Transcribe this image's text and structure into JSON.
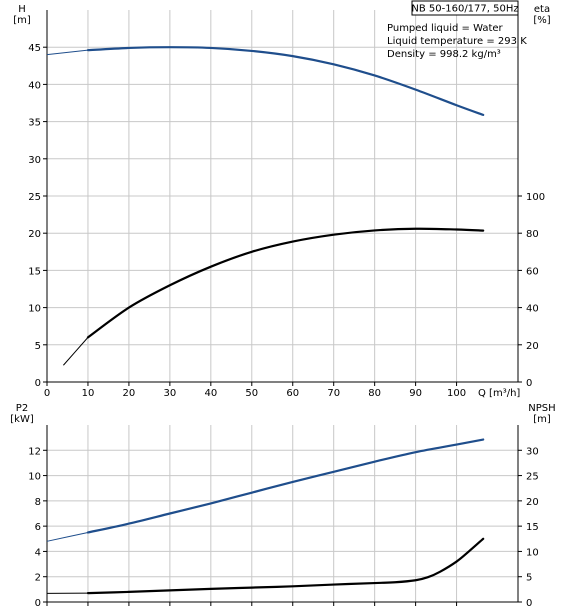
{
  "chart_data": [
    {
      "type": "line",
      "id": "top",
      "title_box": "NB 50-160/177, 50Hz",
      "annotations": [
        "Pumped liquid = Water",
        "Liquid temperature = 293 K",
        "Density = 998.2 kg/m³"
      ],
      "ylabel_left": [
        "H",
        "[m]"
      ],
      "ylabel_right": [
        "eta",
        "[%]"
      ],
      "xlabel": "Q [m³/h]",
      "xlim": [
        0,
        115
      ],
      "xticks": [
        0,
        10,
        20,
        30,
        40,
        50,
        60,
        70,
        80,
        90,
        100
      ],
      "ylim_left": [
        0,
        50
      ],
      "yticks_left": [
        0,
        5,
        10,
        15,
        20,
        25,
        30,
        35,
        40,
        45
      ],
      "ylim_right": [
        0,
        200
      ],
      "yticks_right": [
        0,
        20,
        40,
        60,
        80,
        100
      ],
      "grid": true,
      "series": [
        {
          "axis": "left",
          "color": "#1f4e8c",
          "x": [
            0,
            10,
            20,
            30,
            40,
            50,
            60,
            70,
            80,
            90,
            100,
            106.5
          ],
          "values": [
            44.0,
            44.6,
            44.9,
            45.0,
            44.9,
            44.5,
            43.8,
            42.7,
            41.2,
            39.3,
            37.2,
            35.9
          ],
          "extrapolated_until": 10
        },
        {
          "axis": "right",
          "color": "#000000",
          "x": [
            4,
            10,
            20,
            30,
            40,
            50,
            60,
            70,
            80,
            90,
            100,
            106.5
          ],
          "values": [
            9,
            24,
            40,
            52,
            62,
            70,
            75.5,
            79.2,
            81.5,
            82.4,
            82.0,
            81.4
          ],
          "extrapolated_until": 10
        }
      ]
    },
    {
      "type": "line",
      "id": "bottom",
      "ylabel_left": [
        "P2",
        "[kW]"
      ],
      "ylabel_right": [
        "NPSH",
        "[m]"
      ],
      "xlim": [
        0,
        115
      ],
      "xticks": [
        0,
        10,
        20,
        30,
        40,
        50,
        60,
        70,
        80,
        90,
        100
      ],
      "ylim_left": [
        0,
        14
      ],
      "yticks_left": [
        0,
        2,
        4,
        6,
        8,
        10,
        12
      ],
      "ylim_right": [
        0,
        35
      ],
      "yticks_right": [
        0,
        5,
        10,
        15,
        20,
        25,
        30
      ],
      "grid": true,
      "series": [
        {
          "axis": "left",
          "color": "#1f4e8c",
          "x": [
            0,
            10,
            20,
            30,
            40,
            50,
            60,
            70,
            80,
            90,
            100,
            106.5
          ],
          "values": [
            4.8,
            5.5,
            6.2,
            7.0,
            7.8,
            8.65,
            9.5,
            10.3,
            11.1,
            11.85,
            12.45,
            12.85
          ],
          "extrapolated_until": 10
        },
        {
          "axis": "right",
          "color": "#000000",
          "x": [
            0,
            10,
            20,
            30,
            40,
            50,
            60,
            70,
            80,
            85,
            90,
            93,
            96,
            100,
            103,
            106.5
          ],
          "values": [
            1.7,
            1.75,
            2.0,
            2.3,
            2.6,
            2.85,
            3.1,
            3.45,
            3.75,
            3.9,
            4.3,
            4.9,
            6.0,
            8.0,
            10.0,
            12.5
          ],
          "extrapolated_until": 10
        }
      ]
    }
  ]
}
